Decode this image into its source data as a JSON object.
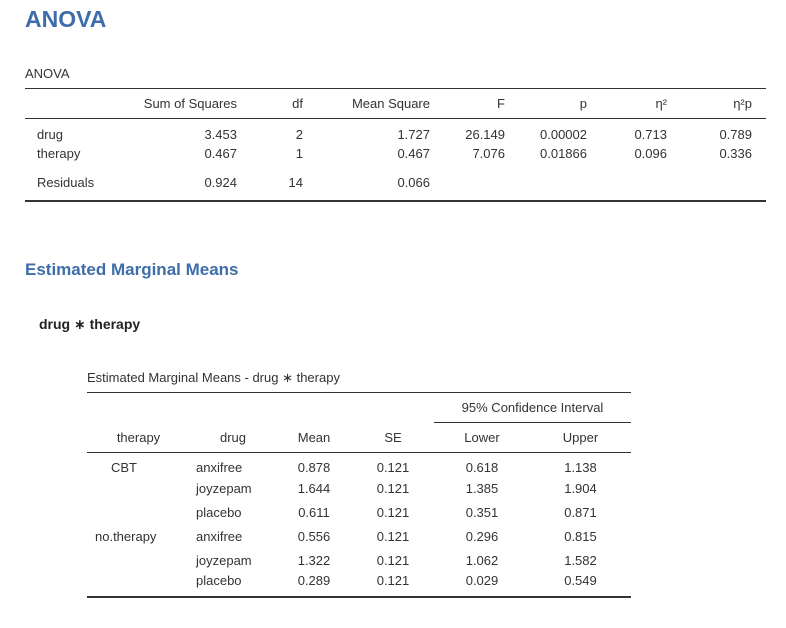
{
  "anova": {
    "heading": "ANOVA",
    "caption": "ANOVA",
    "columns": [
      "",
      "Sum of Squares",
      "df",
      "Mean Square",
      "F",
      "p",
      "η²",
      "η²p"
    ],
    "rows": [
      {
        "label": "drug",
        "ss": "3.453",
        "df": "2",
        "ms": "1.727",
        "f": "26.149",
        "p": "0.00002",
        "eta": "0.713",
        "peta": "0.789"
      },
      {
        "label": "therapy",
        "ss": "0.467",
        "df": "1",
        "ms": "0.467",
        "f": "7.076",
        "p": "0.01866",
        "eta": "0.096",
        "peta": "0.336"
      },
      {
        "label": "Residuals",
        "ss": "0.924",
        "df": "14",
        "ms": "0.066",
        "f": "",
        "p": "",
        "eta": "",
        "peta": ""
      }
    ]
  },
  "emm": {
    "heading": "Estimated Marginal Means",
    "subheading": "drug ∗ therapy",
    "caption": "Estimated Marginal Means - drug ∗ therapy",
    "ci_header": "95% Confidence Interval",
    "columns": [
      "therapy",
      "drug",
      "Mean",
      "SE",
      "Lower",
      "Upper"
    ],
    "rows": [
      {
        "therapy": "CBT",
        "drug": "anxifree",
        "mean": "0.878",
        "se": "0.121",
        "lower": "0.618",
        "upper": "1.138"
      },
      {
        "therapy": "",
        "drug": "joyzepam",
        "mean": "1.644",
        "se": "0.121",
        "lower": "1.385",
        "upper": "1.904"
      },
      {
        "therapy": "",
        "drug": "placebo",
        "mean": "0.611",
        "se": "0.121",
        "lower": "0.351",
        "upper": "0.871"
      },
      {
        "therapy": "no.therapy",
        "drug": "anxifree",
        "mean": "0.556",
        "se": "0.121",
        "lower": "0.296",
        "upper": "0.815"
      },
      {
        "therapy": "",
        "drug": "joyzepam",
        "mean": "1.322",
        "se": "0.121",
        "lower": "1.062",
        "upper": "1.582"
      },
      {
        "therapy": "",
        "drug": "placebo",
        "mean": "0.289",
        "se": "0.121",
        "lower": "0.029",
        "upper": "0.549"
      }
    ]
  }
}
